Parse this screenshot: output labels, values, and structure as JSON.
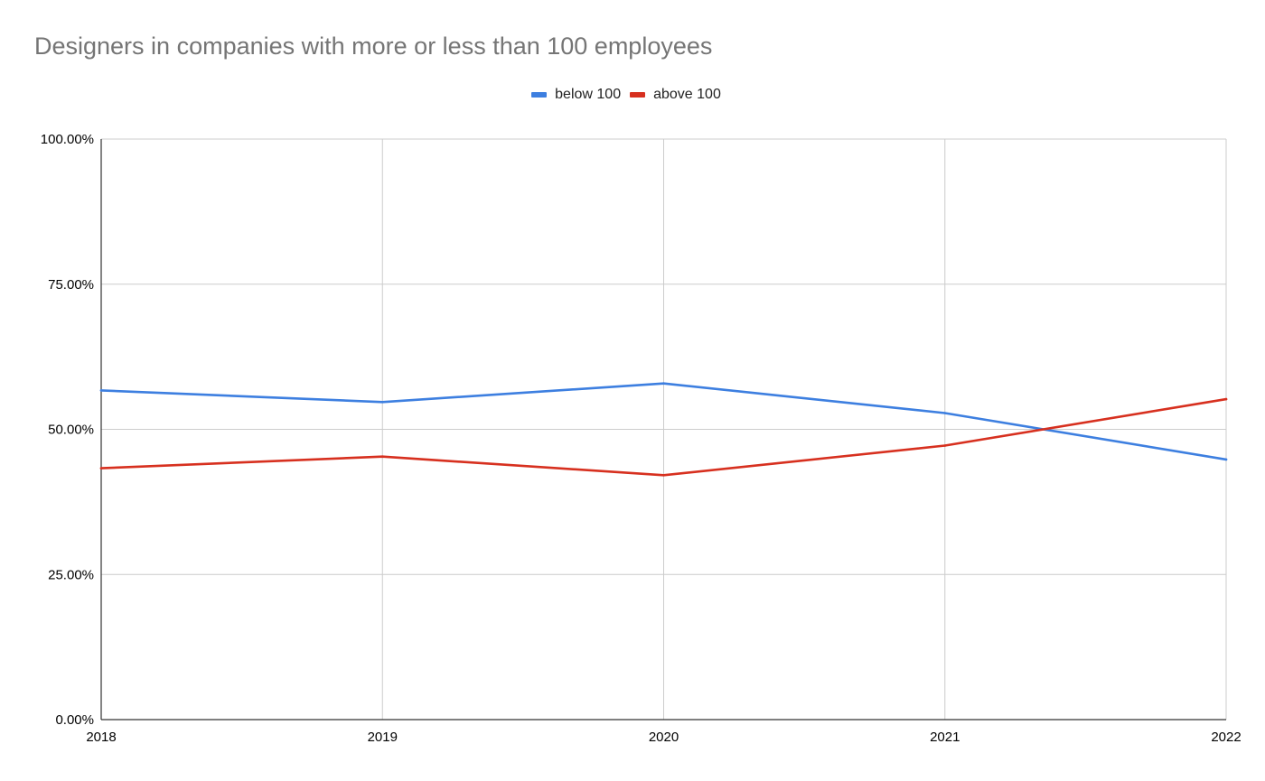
{
  "chart_data": {
    "type": "line",
    "title": "Designers in companies with more or less than 100 employees",
    "categories": [
      "2018",
      "2019",
      "2020",
      "2021",
      "2022"
    ],
    "series": [
      {
        "name": "below 100",
        "color": "#3d7fe0",
        "values": [
          56.7,
          54.7,
          57.9,
          52.8,
          44.8
        ]
      },
      {
        "name": "above 100",
        "color": "#d7301f",
        "values": [
          43.3,
          45.3,
          42.1,
          47.2,
          55.2
        ]
      }
    ],
    "ylim": [
      0,
      100
    ],
    "yticks": [
      0,
      25,
      50,
      75,
      100
    ],
    "ytick_labels": [
      "0.00%",
      "25.00%",
      "50.00%",
      "75.00%",
      "100.00%"
    ],
    "xlabel": "",
    "ylabel": "",
    "grid": true,
    "legend_position": "top-center"
  }
}
